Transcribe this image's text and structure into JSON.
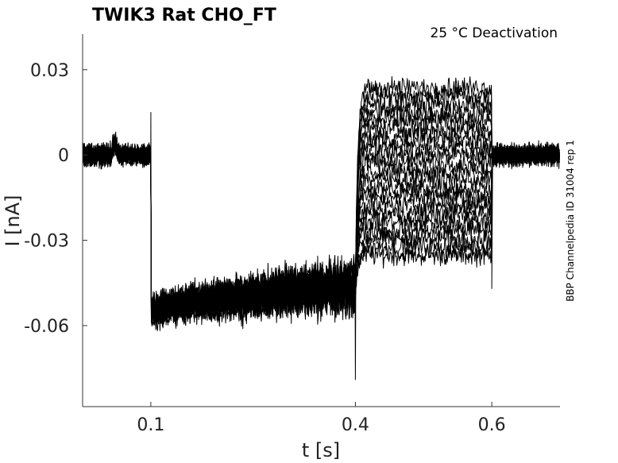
{
  "chart_data": {
    "type": "line",
    "title": "TWIK3  Rat  CHO_FT",
    "annotation": "25 °C  Deactivation",
    "side_label": "BBP Channelpedia ID 31004 rep 1",
    "xlabel": "t [s]",
    "ylabel": "I [nA]",
    "xlim": [
      0,
      0.7
    ],
    "ylim": [
      -0.0885,
      0.0425
    ],
    "x_ticks": [
      {
        "value": 0.1,
        "label": "0.1"
      },
      {
        "value": 0.4,
        "label": "0.4"
      },
      {
        "value": 0.6,
        "label": "0.6"
      }
    ],
    "y_ticks": [
      {
        "value": 0.03,
        "label": "0.03"
      },
      {
        "value": 0,
        "label": "0"
      },
      {
        "value": -0.03,
        "label": "-0.03"
      },
      {
        "value": -0.06,
        "label": "-0.06"
      }
    ],
    "grid": false,
    "legend": "none",
    "color": "#000000",
    "protocol": {
      "segments": [
        0,
        0.1,
        0.4,
        0.6,
        0.7
      ],
      "holding_current": 0.0,
      "prepulse_start": -0.055,
      "prepulse_end": -0.046,
      "step_currents": [
        -0.035,
        -0.032,
        -0.029,
        -0.026,
        -0.023,
        -0.02,
        -0.017,
        -0.014,
        -0.011,
        -0.008,
        -0.005,
        -0.002,
        0.001,
        0.004,
        0.007,
        0.01,
        0.013,
        0.016,
        0.019,
        0.022,
        0.025
      ],
      "spike_at_0.1": 0.015,
      "spike_at_0.4": -0.079,
      "spike_at_0.6": -0.047
    }
  }
}
